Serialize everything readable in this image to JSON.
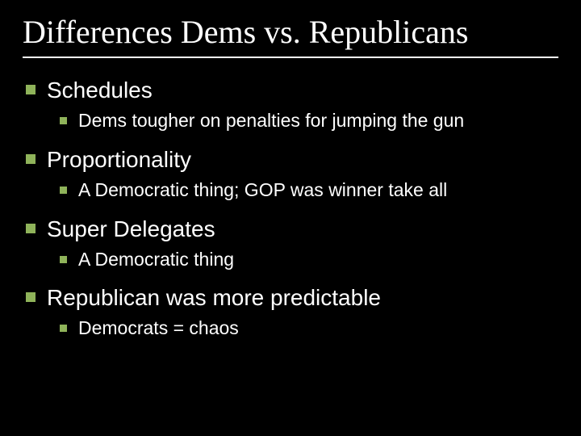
{
  "slide": {
    "title": "Differences Dems vs. Republicans",
    "background_color": "#000000",
    "title_color": "#ffffff",
    "title_font": "Times New Roman",
    "title_fontsize": 40,
    "rule_color": "#ffffff",
    "bullet_color": "#8fb35a",
    "body_color": "#ffffff",
    "body_font": "Arial",
    "l1_fontsize": 28,
    "l2_fontsize": 23,
    "items": [
      {
        "label": "Schedules",
        "sub": [
          {
            "label": "Dems tougher on penalties for jumping the gun"
          }
        ]
      },
      {
        "label": "Proportionality",
        "sub": [
          {
            "label": "A Democratic thing; GOP was winner take all"
          }
        ]
      },
      {
        "label": "Super Delegates",
        "sub": [
          {
            "label": "A Democratic thing"
          }
        ]
      },
      {
        "label": "Republican was more predictable",
        "sub": [
          {
            "label": "Democrats = chaos"
          }
        ]
      }
    ]
  }
}
